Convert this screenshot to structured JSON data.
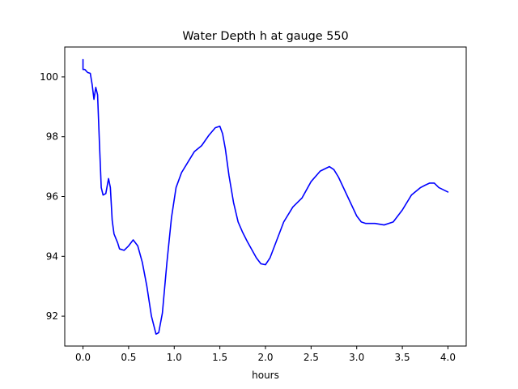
{
  "chart_data": {
    "type": "line",
    "title": "Water Depth h at gauge 550",
    "xlabel": "hours",
    "ylabel": "",
    "xlim": [
      -0.2,
      4.2
    ],
    "ylim": [
      91.0,
      101.0
    ],
    "x_ticks": [
      0.0,
      0.5,
      1.0,
      1.5,
      2.0,
      2.5,
      3.0,
      3.5,
      4.0
    ],
    "x_tick_labels": [
      "0.0",
      "0.5",
      "1.0",
      "1.5",
      "2.0",
      "2.5",
      "3.0",
      "3.5",
      "4.0"
    ],
    "y_ticks": [
      92,
      94,
      96,
      98,
      100
    ],
    "y_tick_labels": [
      "92",
      "94",
      "96",
      "98",
      "100"
    ],
    "grid": false,
    "legend": "none",
    "series": [
      {
        "color": "#0000ff",
        "x": [
          0.0,
          0.0,
          0.02,
          0.05,
          0.08,
          0.1,
          0.12,
          0.14,
          0.16,
          0.18,
          0.2,
          0.22,
          0.25,
          0.28,
          0.3,
          0.32,
          0.34,
          0.36,
          0.38,
          0.4,
          0.45,
          0.5,
          0.55,
          0.6,
          0.65,
          0.7,
          0.75,
          0.8,
          0.83,
          0.87,
          0.92,
          0.97,
          1.02,
          1.08,
          1.15,
          1.22,
          1.3,
          1.38,
          1.45,
          1.5,
          1.53,
          1.56,
          1.6,
          1.65,
          1.7,
          1.75,
          1.8,
          1.9,
          1.95,
          2.0,
          2.05,
          2.1,
          2.2,
          2.3,
          2.4,
          2.5,
          2.6,
          2.7,
          2.75,
          2.8,
          2.9,
          3.0,
          3.05,
          3.1,
          3.2,
          3.3,
          3.4,
          3.5,
          3.6,
          3.7,
          3.75,
          3.8,
          3.85,
          3.9,
          4.0
        ],
        "y": [
          100.58,
          100.25,
          100.25,
          100.15,
          100.12,
          99.75,
          99.25,
          99.65,
          99.4,
          97.8,
          96.3,
          96.05,
          96.1,
          96.6,
          96.3,
          95.2,
          94.75,
          94.6,
          94.45,
          94.25,
          94.2,
          94.35,
          94.55,
          94.35,
          93.8,
          93.0,
          92.0,
          91.4,
          91.45,
          92.1,
          93.8,
          95.3,
          96.3,
          96.8,
          97.15,
          97.5,
          97.7,
          98.05,
          98.3,
          98.35,
          98.1,
          97.6,
          96.7,
          95.8,
          95.15,
          94.8,
          94.5,
          93.95,
          93.75,
          93.72,
          93.95,
          94.35,
          95.15,
          95.65,
          95.95,
          96.5,
          96.85,
          97.0,
          96.9,
          96.65,
          96.0,
          95.35,
          95.15,
          95.1,
          95.1,
          95.05,
          95.15,
          95.55,
          96.05,
          96.3,
          96.38,
          96.45,
          96.45,
          96.3,
          96.15
        ]
      }
    ]
  }
}
